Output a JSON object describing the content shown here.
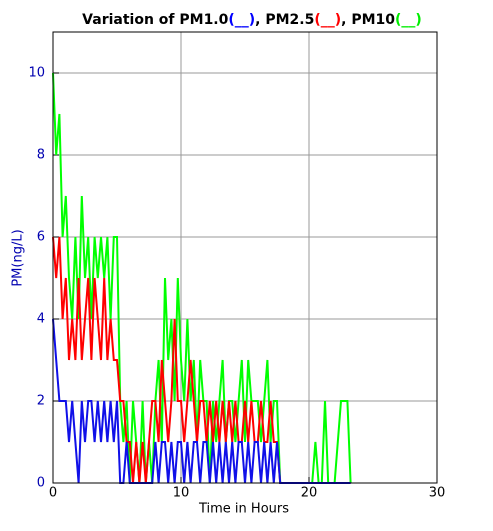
{
  "chart_data": {
    "type": "line",
    "title_parts": [
      "Variation of PM1.0",
      "(__)",
      ", PM2.5",
      "(__)",
      ", PM10",
      "(__)"
    ],
    "title_colors": [
      "#000000",
      "#0000ff",
      "#000000",
      "#ff0000",
      "#000000",
      "#00ee00"
    ],
    "x_label": "Time in Hours",
    "y_label": "PM(ng/L)",
    "xlim": [
      0,
      30
    ],
    "xticks": [
      0,
      10,
      20,
      30
    ],
    "ylim": [
      0,
      11
    ],
    "yticks": [
      0,
      2,
      4,
      6,
      8,
      10
    ],
    "grid": true,
    "x": [
      0,
      0.25,
      0.5,
      0.75,
      1,
      1.25,
      1.5,
      1.75,
      2,
      2.25,
      2.5,
      2.75,
      3,
      3.25,
      3.5,
      3.75,
      4,
      4.25,
      4.5,
      4.75,
      5,
      5.25,
      5.5,
      5.75,
      6,
      6.25,
      6.5,
      6.75,
      7,
      7.25,
      7.5,
      7.75,
      8,
      8.25,
      8.5,
      8.75,
      9,
      9.25,
      9.5,
      9.75,
      10,
      10.25,
      10.5,
      10.75,
      11,
      11.25,
      11.5,
      11.75,
      12,
      12.25,
      12.5,
      12.75,
      13,
      13.25,
      13.5,
      13.75,
      14,
      14.25,
      14.5,
      14.75,
      15,
      15.25,
      15.5,
      15.75,
      16,
      16.25,
      16.5,
      16.75,
      17,
      17.25,
      17.5,
      17.75,
      18,
      18.25,
      18.5,
      18.75,
      19,
      19.25,
      19.5,
      19.75,
      20,
      20.25,
      20.5,
      20.75,
      21,
      21.25,
      21.5,
      21.75,
      22,
      22.25,
      22.5,
      22.75,
      23,
      23.25
    ],
    "series": [
      {
        "color": "#00ff00",
        "values": [
          10,
          8,
          9,
          6,
          7,
          5,
          4,
          6,
          4,
          7,
          5,
          6,
          4,
          6,
          5,
          6,
          5,
          6,
          4,
          6,
          6,
          2,
          1,
          2,
          0,
          2,
          1,
          0,
          2,
          0,
          1,
          0,
          2,
          3,
          1,
          5,
          3,
          4,
          2,
          5,
          3,
          2,
          4,
          2,
          3,
          1,
          3,
          2,
          2,
          0,
          2,
          1,
          2,
          3,
          1,
          2,
          2,
          1,
          2,
          3,
          1,
          3,
          2,
          2,
          2,
          1,
          2,
          3,
          1,
          2,
          2,
          0,
          0,
          0,
          0,
          0,
          0,
          0,
          0,
          0,
          0,
          0,
          1,
          0,
          0,
          2,
          0,
          0,
          0,
          1,
          2,
          2,
          2,
          0
        ]
      },
      {
        "color": "#ff0000",
        "values": [
          6,
          5,
          6,
          4,
          5,
          3,
          4,
          3,
          5,
          3,
          4,
          5,
          3,
          5,
          4,
          3,
          5,
          3,
          4,
          3,
          3,
          2,
          2,
          1,
          1,
          0,
          1,
          0,
          1,
          0,
          1,
          2,
          2,
          1,
          3,
          2,
          1,
          2,
          4,
          2,
          2,
          1,
          2,
          3,
          2,
          1,
          2,
          2,
          1,
          2,
          1,
          2,
          1,
          2,
          1,
          2,
          1,
          2,
          1,
          1,
          2,
          1,
          2,
          1,
          1,
          2,
          1,
          1,
          2,
          1,
          1,
          0,
          0,
          0,
          0,
          0,
          0,
          0,
          0,
          0,
          0,
          0,
          0,
          0,
          0,
          0,
          0,
          0,
          0,
          0,
          0,
          0,
          0,
          0
        ]
      },
      {
        "color": "#1010e8",
        "values": [
          4,
          3,
          2,
          2,
          2,
          1,
          2,
          1,
          0,
          2,
          1,
          2,
          2,
          1,
          2,
          1,
          2,
          1,
          2,
          1,
          2,
          0,
          0,
          1,
          0,
          0,
          0,
          0,
          0,
          0,
          0,
          0,
          1,
          0,
          1,
          1,
          0,
          1,
          0,
          1,
          1,
          0,
          1,
          0,
          1,
          1,
          0,
          1,
          1,
          0,
          1,
          0,
          1,
          0,
          1,
          0,
          1,
          0,
          1,
          1,
          0,
          1,
          0,
          1,
          1,
          0,
          1,
          0,
          1,
          0,
          1,
          0,
          0,
          0,
          0,
          0,
          0,
          0,
          0,
          0,
          0,
          0,
          0,
          0,
          0,
          0,
          0,
          0,
          0,
          0,
          0,
          0,
          0,
          0
        ]
      }
    ]
  }
}
